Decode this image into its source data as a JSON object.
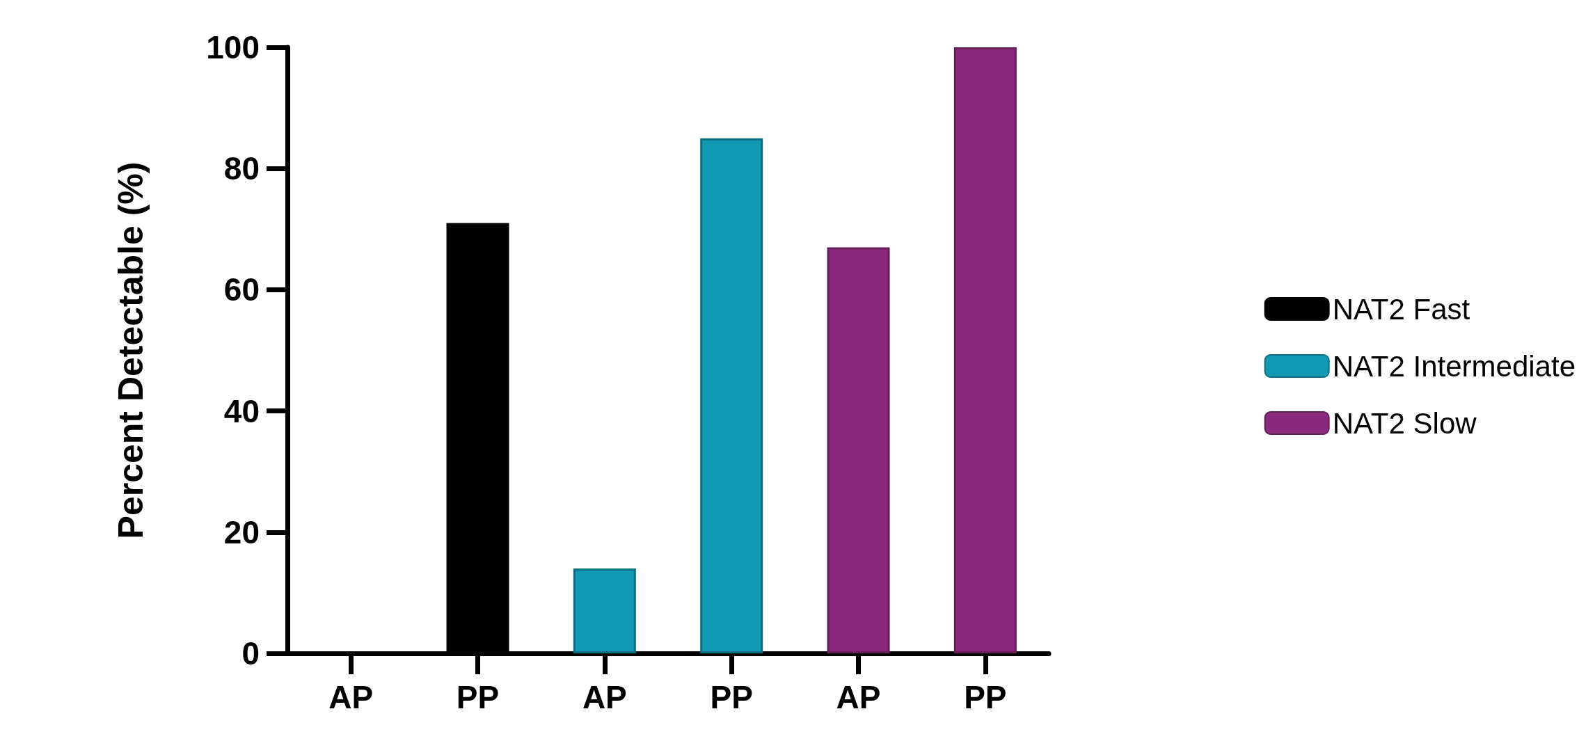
{
  "chart_data": {
    "type": "bar",
    "ylabel": "Percent Detectable (%)",
    "categories": [
      "AP",
      "PP",
      "AP",
      "PP",
      "AP",
      "PP"
    ],
    "series": [
      {
        "name": "NAT2 Fast",
        "color": "#000000",
        "values": [
          0,
          71,
          null,
          null,
          null,
          null
        ]
      },
      {
        "name": "NAT2 Intermediate",
        "color": "#1199b3",
        "values": [
          null,
          null,
          14,
          85,
          null,
          null
        ]
      },
      {
        "name": "NAT2 Slow",
        "color": "#8b2a7d",
        "values": [
          null,
          null,
          null,
          null,
          67,
          100
        ]
      }
    ],
    "ylim": [
      0,
      100
    ],
    "yticks": [
      0,
      20,
      40,
      60,
      80,
      100
    ],
    "grid": false,
    "legend": "right"
  }
}
